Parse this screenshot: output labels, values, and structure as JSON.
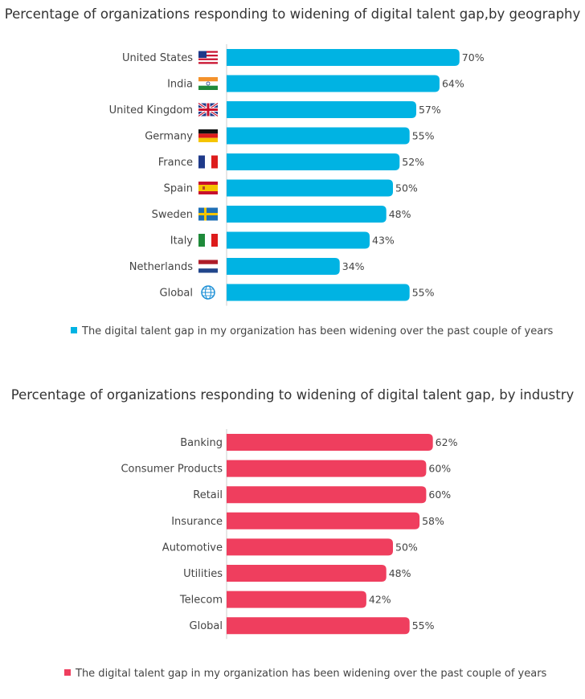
{
  "colors": {
    "geo_bar": "#00b3e3",
    "ind_bar": "#ef3e5e",
    "axis": "#cccccc"
  },
  "chart_data": [
    {
      "type": "bar",
      "orientation": "horizontal",
      "title": "Percentage of organizations responding to widening  of digital talent gap,by geography",
      "categories": [
        "United States",
        "India",
        "United Kingdom",
        "Germany",
        "France",
        "Spain",
        "Sweden",
        "Italy",
        "Netherlands",
        "Global"
      ],
      "category_icons": [
        "flag-us-icon",
        "flag-india-icon",
        "flag-uk-icon",
        "flag-germany-icon",
        "flag-france-icon",
        "flag-spain-icon",
        "flag-sweden-icon",
        "flag-italy-icon",
        "flag-netherlands-icon",
        "globe-icon"
      ],
      "series": [
        {
          "name": "The digital talent gap in my organization has been widening over the past couple of years",
          "values": [
            70,
            64,
            57,
            55,
            52,
            50,
            48,
            43,
            34,
            55
          ]
        }
      ],
      "value_labels": [
        "70%",
        "64%",
        "57%",
        "55%",
        "52%",
        "50%",
        "48%",
        "43%",
        "34%",
        "55%"
      ],
      "unit": "%",
      "legend_position": "bottom",
      "grid": false
    },
    {
      "type": "bar",
      "orientation": "horizontal",
      "title": "Percentage of organizations responding to widening of digital talent gap, by industry",
      "categories": [
        "Banking",
        "Consumer Products",
        "Retail",
        "Insurance",
        "Automotive",
        "Utilities",
        "Telecom",
        "Global"
      ],
      "series": [
        {
          "name": "The digital talent gap in my organization has been widening over the past couple of years",
          "values": [
            62,
            60,
            60,
            58,
            50,
            48,
            42,
            55
          ]
        }
      ],
      "value_labels": [
        "62%",
        "60%",
        "60%",
        "58%",
        "50%",
        "48%",
        "42%",
        "55%"
      ],
      "unit": "%",
      "legend_position": "bottom",
      "grid": false
    }
  ]
}
